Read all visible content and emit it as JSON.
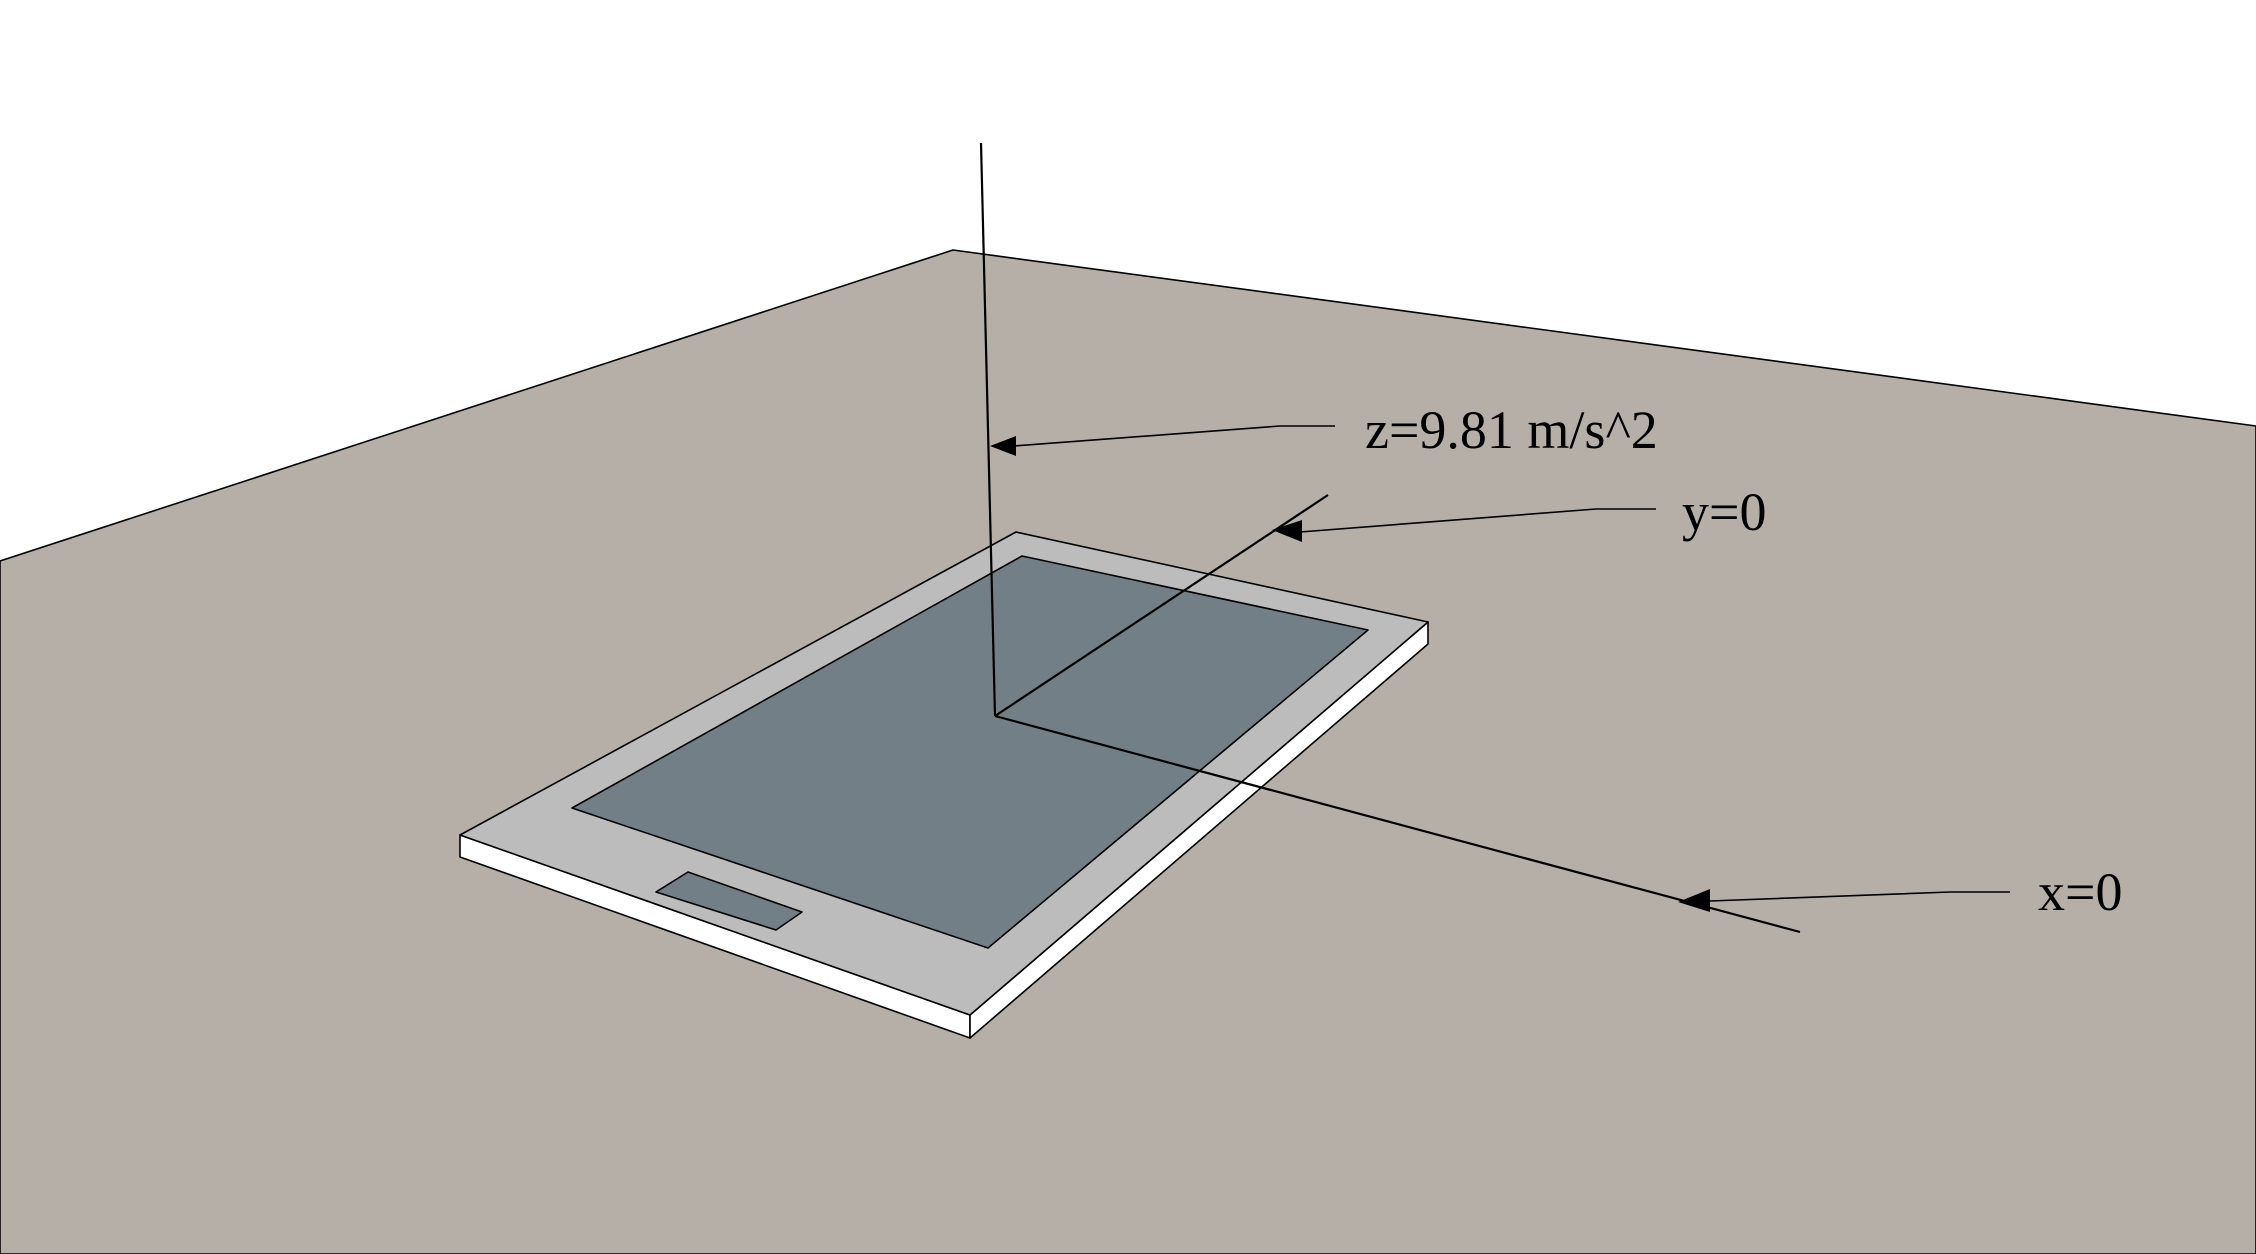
{
  "colors": {
    "background": "#ffffff",
    "floor": "#b5afa8",
    "phone_frame": "#bcbcbc",
    "phone_screen": "#737f86",
    "phone_button": "#737f86",
    "phone_side": "#ffffff",
    "lines": "#000000"
  },
  "labels": {
    "z_axis": "z=9.81 m/s^2",
    "y_axis": "y=0",
    "x_axis": "x=0"
  },
  "icons": {
    "arrowhead": "filled-triangle"
  }
}
